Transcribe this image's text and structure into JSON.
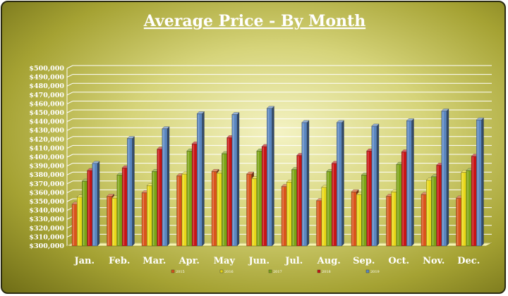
{
  "chart_data": {
    "type": "bar",
    "title": "Average Price - By Month",
    "categories": [
      "Jan.",
      "Feb.",
      "Mar.",
      "Apr.",
      "May",
      "Jun.",
      "Jul.",
      "Aug.",
      "Sep.",
      "Oct.",
      "Nov.",
      "Dec."
    ],
    "series": [
      {
        "name": "2015",
        "color": "#d9541a",
        "values": [
          347000,
          356000,
          360000,
          379000,
          384000,
          381000,
          367000,
          351000,
          361000,
          356000,
          358000,
          354000
        ]
      },
      {
        "name": "2016",
        "color": "#e8d818",
        "values": [
          355000,
          354000,
          368000,
          381000,
          382000,
          376000,
          372000,
          366000,
          358000,
          361000,
          374000,
          383000
        ]
      },
      {
        "name": "2017",
        "color": "#7ca414",
        "values": [
          373000,
          380000,
          384000,
          407000,
          404000,
          407000,
          386000,
          384000,
          380000,
          392000,
          378000,
          385000
        ]
      },
      {
        "name": "2018",
        "color": "#c81414",
        "values": [
          385000,
          388000,
          409000,
          415000,
          422000,
          412000,
          402000,
          393000,
          407000,
          406000,
          391000,
          401000
        ]
      },
      {
        "name": "2019",
        "color": "#5a86c0",
        "values": [
          393000,
          421000,
          432000,
          449000,
          448000,
          455000,
          439000,
          439000,
          435000,
          441000,
          452000,
          442000
        ]
      }
    ],
    "ylim": [
      300000,
      500000
    ],
    "ytick_step": 10000,
    "yticks": [
      "$300,000",
      "$310,000",
      "$320,000",
      "$330,000",
      "$340,000",
      "$350,000",
      "$360,000",
      "$370,000",
      "$380,000",
      "$390,000",
      "$400,000",
      "$410,000",
      "$420,000",
      "$430,000",
      "$440,000",
      "$450,000",
      "$460,000",
      "$470,000",
      "$480,000",
      "$490,000",
      "$500,000"
    ],
    "grid": true,
    "legend_position": "bottom"
  }
}
